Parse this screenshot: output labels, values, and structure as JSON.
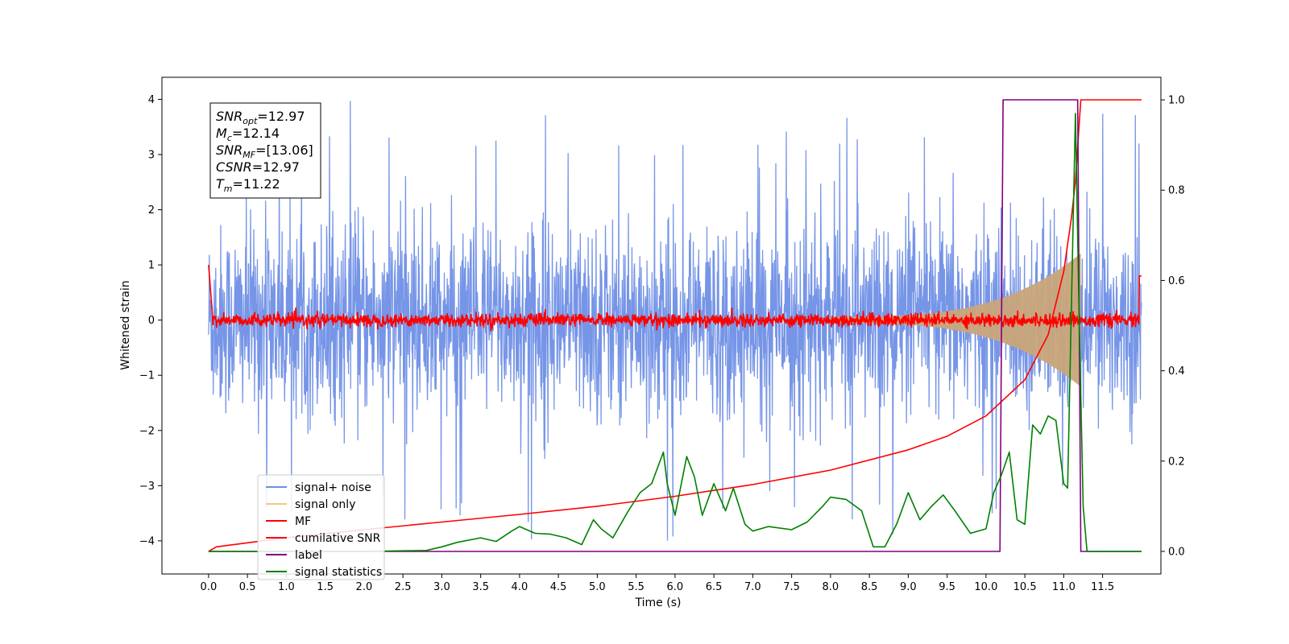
{
  "chart_data": {
    "type": "line",
    "title": "",
    "xlabel": "Time (s)",
    "ylabel": "Whitened strain",
    "xlim": [
      -0.6,
      12.25
    ],
    "ylim": [
      -4.6,
      4.4
    ],
    "y2lim": [
      -0.05,
      1.05
    ],
    "grid": false,
    "legend_position": "lower-left",
    "x_ticks": [
      "0.0",
      "0.5",
      "1.0",
      "1.5",
      "2.0",
      "2.5",
      "3.0",
      "3.5",
      "4.0",
      "4.5",
      "5.0",
      "5.5",
      "6.0",
      "6.5",
      "7.0",
      "7.5",
      "8.0",
      "8.5",
      "9.0",
      "9.5",
      "10.0",
      "10.5",
      "11.0",
      "11.5"
    ],
    "y_ticks": [
      "4",
      "3",
      "2",
      "1",
      "0",
      "−1",
      "−2",
      "−3",
      "−4"
    ],
    "y2_ticks": [
      "1.0",
      "0.8",
      "0.6",
      "0.4",
      "0.2",
      "0.0"
    ],
    "annotation_lines": [
      {
        "symbol": "SNR",
        "sub": "opt",
        "value": "=12.97"
      },
      {
        "symbol": "M",
        "sub": "c",
        "value": "=12.14"
      },
      {
        "symbol": "SNR",
        "sub": "MF",
        "value": "=[13.06]"
      },
      {
        "symbol": "CSNR",
        "sub": "",
        "value": "=12.97"
      },
      {
        "symbol": "T",
        "sub": "m",
        "value": "=11.22"
      }
    ],
    "series": [
      {
        "name": "signal+ noise",
        "axis": "left",
        "color": "#6f8fe6",
        "description": "white noise band approx -2.3 to 2.3 with spikes to +/-4 over t in [0, 12]"
      },
      {
        "name": "signal only",
        "axis": "left",
        "color": "#f5c87a",
        "description": "chirp envelope growing from ~0 near t=8 to ~+/-1.2 at t=11.2, then zero"
      },
      {
        "name": "MF",
        "axis": "left",
        "color": "#ff0000",
        "description": "noise band around 0 amplitude ~0.15, starts at 1.0 at t=0"
      },
      {
        "name": "cumilative SNR",
        "axis": "right",
        "color": "#ff0000",
        "x": [
          0.0,
          0.1,
          1.0,
          2.0,
          3.0,
          4.0,
          5.0,
          6.0,
          7.0,
          8.0,
          9.0,
          9.5,
          10.0,
          10.5,
          10.8,
          11.0,
          11.1,
          11.15,
          11.2,
          11.22,
          12.0
        ],
        "y": [
          0.0,
          0.01,
          0.03,
          0.048,
          0.065,
          0.082,
          0.1,
          0.122,
          0.148,
          0.18,
          0.225,
          0.255,
          0.3,
          0.38,
          0.48,
          0.62,
          0.74,
          0.82,
          0.95,
          1.0,
          1.0
        ]
      },
      {
        "name": "label",
        "axis": "right",
        "color": "#800080",
        "x": [
          0.0,
          10.18,
          10.22,
          11.18,
          11.22,
          12.0
        ],
        "y": [
          0.0,
          0.0,
          1.0,
          1.0,
          0.0,
          0.0
        ]
      },
      {
        "name": "signal statistics",
        "axis": "right",
        "color": "#008000",
        "x": [
          0.0,
          1.0,
          2.0,
          2.8,
          3.0,
          3.2,
          3.5,
          3.7,
          3.9,
          4.0,
          4.2,
          4.4,
          4.6,
          4.8,
          4.95,
          5.05,
          5.2,
          5.4,
          5.55,
          5.7,
          5.85,
          5.9,
          6.0,
          6.15,
          6.25,
          6.35,
          6.5,
          6.65,
          6.75,
          6.9,
          7.0,
          7.2,
          7.5,
          7.7,
          7.9,
          8.0,
          8.2,
          8.4,
          8.55,
          8.7,
          8.85,
          9.0,
          9.15,
          9.3,
          9.45,
          9.6,
          9.8,
          10.0,
          10.1,
          10.2,
          10.3,
          10.4,
          10.5,
          10.6,
          10.7,
          10.8,
          10.9,
          11.0,
          11.05,
          11.15,
          11.2,
          11.25,
          11.3,
          12.0
        ],
        "y": [
          0.0,
          0.0,
          0.0,
          0.002,
          0.01,
          0.02,
          0.03,
          0.022,
          0.045,
          0.055,
          0.04,
          0.038,
          0.03,
          0.015,
          0.07,
          0.05,
          0.03,
          0.09,
          0.13,
          0.15,
          0.22,
          0.15,
          0.08,
          0.21,
          0.165,
          0.08,
          0.15,
          0.09,
          0.14,
          0.06,
          0.045,
          0.055,
          0.048,
          0.065,
          0.1,
          0.12,
          0.115,
          0.09,
          0.01,
          0.01,
          0.06,
          0.13,
          0.07,
          0.1,
          0.125,
          0.09,
          0.04,
          0.05,
          0.13,
          0.17,
          0.22,
          0.07,
          0.06,
          0.28,
          0.26,
          0.3,
          0.29,
          0.15,
          0.14,
          0.97,
          0.5,
          0.1,
          0.0,
          0.0
        ]
      }
    ]
  }
}
